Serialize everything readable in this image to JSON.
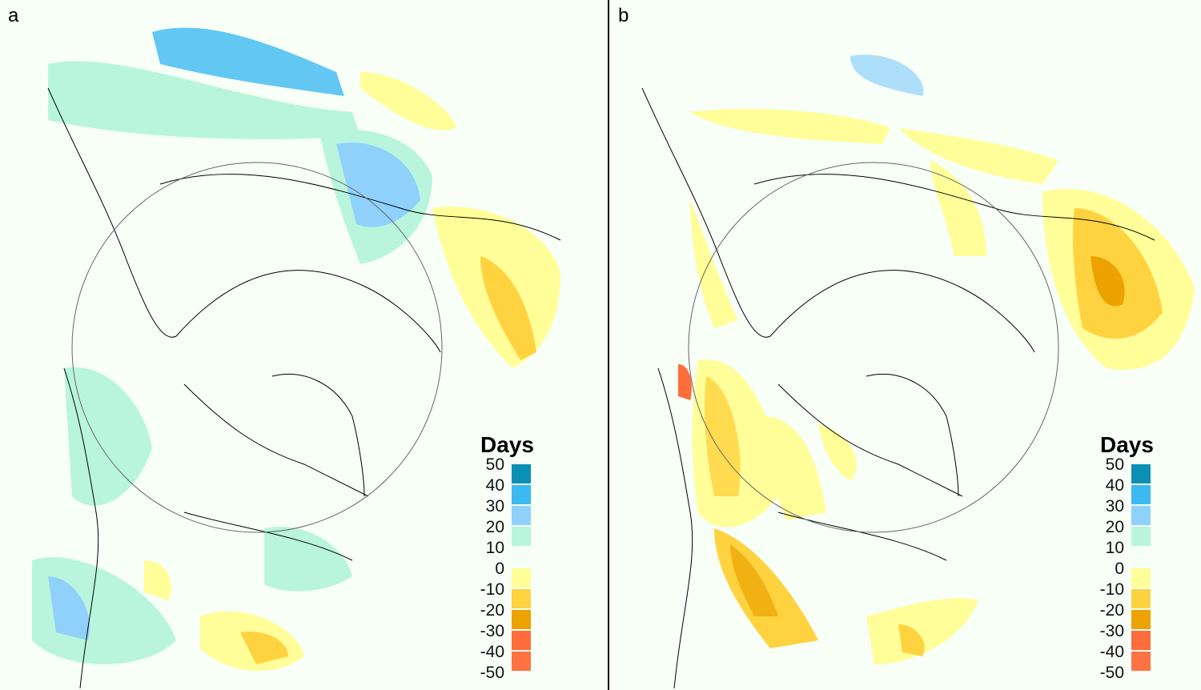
{
  "panels": [
    {
      "label": "a"
    },
    {
      "label": "b"
    }
  ],
  "legend": {
    "title": "Days",
    "ticks": [
      "50",
      "40",
      "30",
      "20",
      "10",
      "0",
      "-10",
      "-20",
      "-30",
      "-40",
      "-50"
    ],
    "bins": [
      {
        "range": "40 to 50",
        "color": "#0b8fb4"
      },
      {
        "range": "30 to 40",
        "color": "#3db9f1"
      },
      {
        "range": "20 to 30",
        "color": "#8fd1fb"
      },
      {
        "range": "10 to 20",
        "color": "#b9f5dd"
      },
      {
        "range": "-10 to 10",
        "color": "#f6fff6"
      },
      {
        "range": "-20 to -10",
        "color": "#fffe98"
      },
      {
        "range": "-30 to -20",
        "color": "#ffd23f"
      },
      {
        "range": "-40 to -30",
        "color": "#eca200"
      },
      {
        "range": "-50 to -40",
        "color": "#ff6d3a"
      },
      {
        "range": "< -50",
        "color": "#ff7342"
      }
    ]
  }
}
